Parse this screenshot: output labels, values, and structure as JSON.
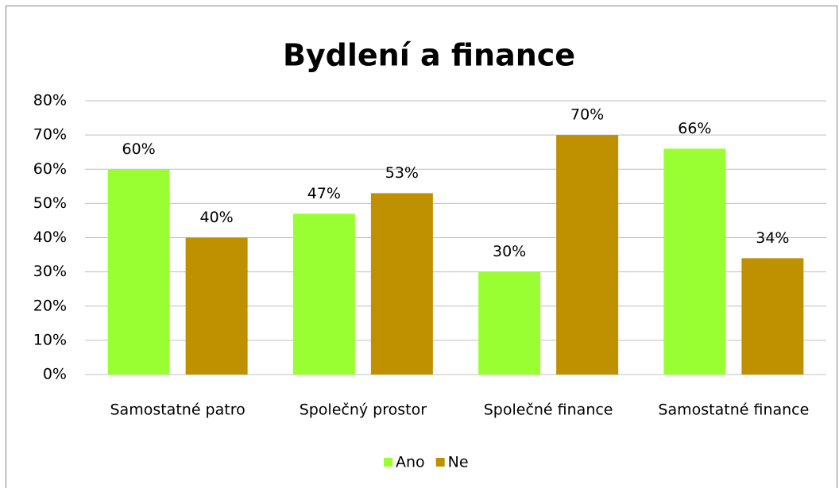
{
  "chart_data": {
    "type": "bar",
    "title": "Bydlení a finance",
    "categories": [
      "Samostatné patro",
      "Společný prostor",
      "Společné finance",
      "Samostatné finance"
    ],
    "series": [
      {
        "name": "Ano",
        "color": "#99ff33",
        "values": [
          60,
          47,
          30,
          66
        ],
        "value_labels": [
          "60%",
          "47%",
          "30%",
          "66%"
        ]
      },
      {
        "name": "Ne",
        "color": "#bf9000",
        "values": [
          40,
          53,
          70,
          34
        ],
        "value_labels": [
          "40%",
          "53%",
          "70%",
          "34%"
        ]
      }
    ],
    "ylim": [
      0,
      80
    ],
    "yticks": [
      {
        "value": 0,
        "label": "0%"
      },
      {
        "value": 10,
        "label": "10%"
      },
      {
        "value": 20,
        "label": "20%"
      },
      {
        "value": 30,
        "label": "30%"
      },
      {
        "value": 40,
        "label": "40%"
      },
      {
        "value": 50,
        "label": "50%"
      },
      {
        "value": 60,
        "label": "60%"
      },
      {
        "value": 70,
        "label": "70%"
      },
      {
        "value": 80,
        "label": "80%"
      }
    ],
    "grid": true,
    "legend": "bottom"
  }
}
